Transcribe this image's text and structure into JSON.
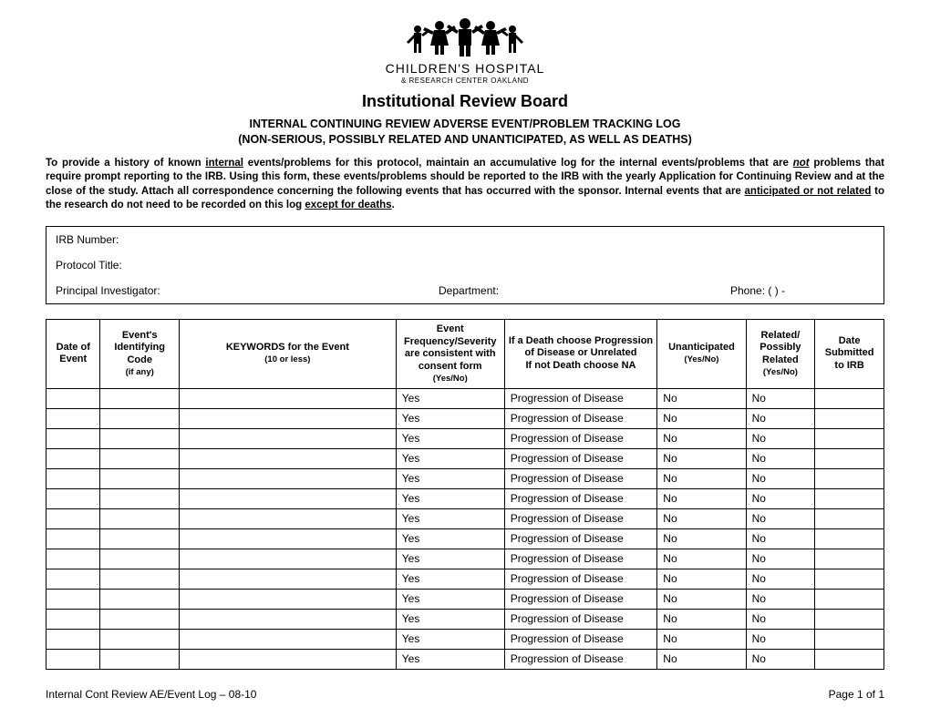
{
  "org": {
    "name": "CHILDREN'S HOSPITAL",
    "sub": "& RESEARCH CENTER OAKLAND"
  },
  "title": "Institutional Review Board",
  "subtitle_line1": "INTERNAL CONTINUING REVIEW ADVERSE EVENT/PROBLEM TRACKING LOG",
  "subtitle_line2": "(NON-SERIOUS, POSSIBLY RELATED AND UNANTICIPATED, AS WELL AS DEATHS)",
  "instructions": {
    "p1a": "To provide a history of known ",
    "p1b": "internal",
    "p1c": " events/problems for this protocol, maintain an accumulative log for the internal events/problems that are ",
    "p1d": "not",
    "p1e": " problems that require prompt reporting to the IRB.  Using this form, these events/problems should be reported to the IRB with the yearly Application for Continuing Review and at the close of the study.  Attach all correspondence concerning the following events that has occurred with the sponsor.  Internal events that are ",
    "p1f": "anticipated or not related",
    "p1g": " to the research do not need to be recorded on this log ",
    "p1h": "except for deaths",
    "p1i": "."
  },
  "info": {
    "irb_label": "IRB Number:",
    "protocol_label": "Protocol Title:",
    "pi_label": "Principal Investigator:",
    "dept_label": "Department:",
    "phone_label": "Phone:  (          )         -"
  },
  "headers": {
    "c1": "Date of Event",
    "c2": "Event's Identifying Code",
    "c2s": "(if any)",
    "c3": "KEYWORDS for the Event",
    "c3s": "(10 or less)",
    "c4a": "Event Frequency/Severity",
    "c4b": "are consistent with consent form",
    "c4c": "(Yes/No)",
    "c5a": "If a Death choose Progression of Disease or Unrelated",
    "c5b": "If not Death choose NA",
    "c6": "Unanticipated",
    "c6s": "(Yes/No)",
    "c7": "Related/ Possibly Related",
    "c7s": "(Yes/No)",
    "c8": "Date Submitted to IRB"
  },
  "defaults": {
    "freq": "Yes",
    "death": "Progression of Disease",
    "unant": "No",
    "rel": "No"
  },
  "row_count": 14,
  "footer_left": "Internal Cont Review AE/Event Log – 08-10",
  "footer_right": "Page 1 of 1"
}
